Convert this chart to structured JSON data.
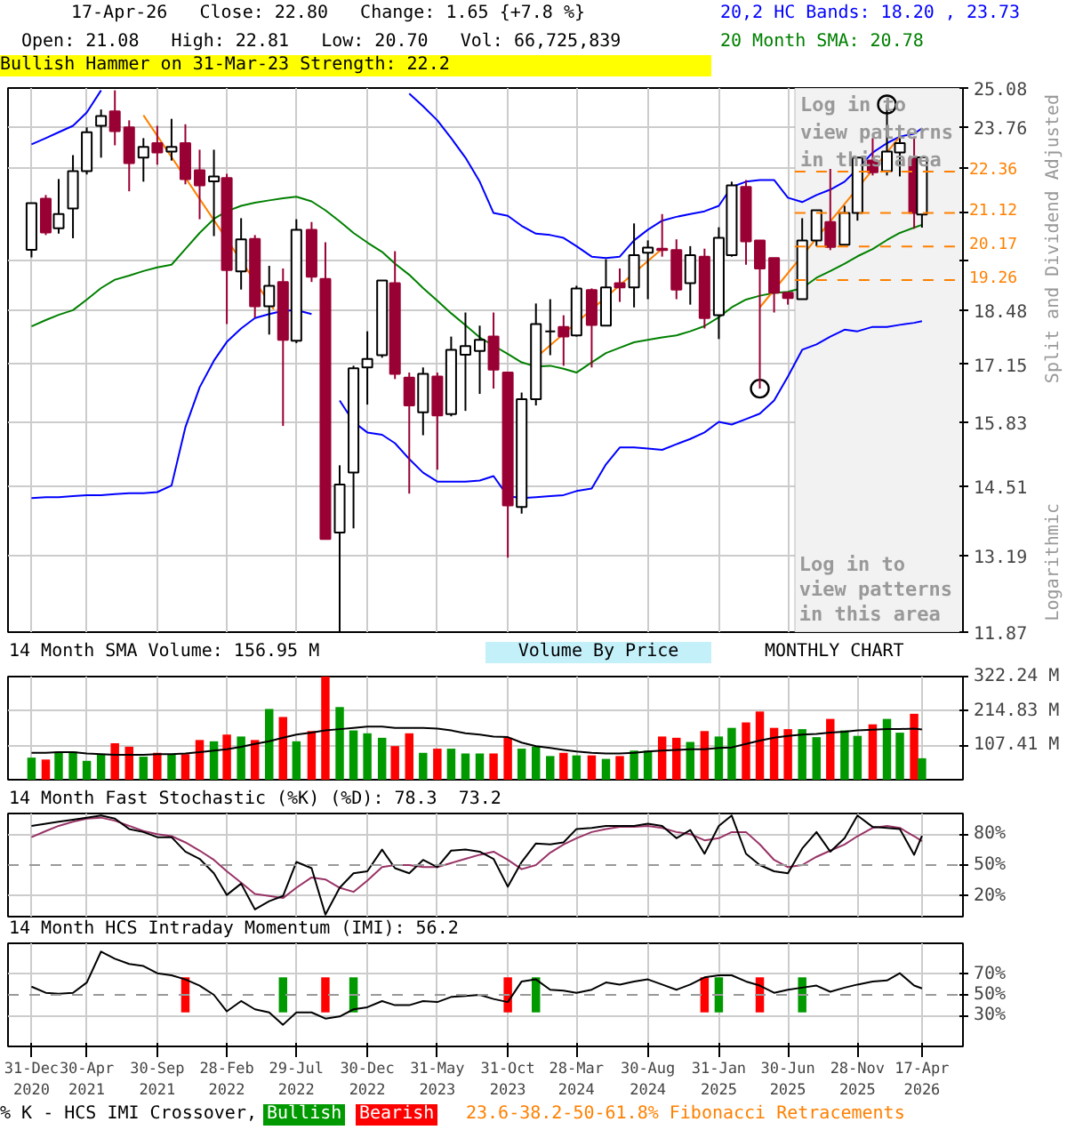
{
  "chart_data": [
    {
      "type": "candlestick",
      "title": "17-Apr-26   Close: 22.80   Change: 1.65 {+7.8 %}",
      "subtitle": "Open: 21.08   High: 22.81   Low: 20.70   Vol: 66,725,839",
      "ylabel": "Split and Dividend Adjusted",
      "x": [
        "2020-12-31",
        "2021-01-31",
        "2021-02-28",
        "2021-03-31",
        "2021-04-30",
        "2021-05-31",
        "2021-06-30",
        "2021-07-31",
        "2021-08-31",
        "2021-09-30",
        "2021-10-31",
        "2021-11-30",
        "2021-12-31",
        "2022-01-31",
        "2022-02-28",
        "2022-03-31",
        "2022-04-30",
        "2022-05-31",
        "2022-06-30",
        "2022-07-29",
        "2022-08-31",
        "2022-09-30",
        "2022-10-31",
        "2022-11-30",
        "2022-12-30",
        "2023-01-31",
        "2023-02-28",
        "2023-03-31",
        "2023-04-30",
        "2023-05-31",
        "2023-06-30",
        "2023-07-31",
        "2023-08-31",
        "2023-09-30",
        "2023-10-31",
        "2023-11-30",
        "2023-12-31",
        "2024-01-31",
        "2024-02-29",
        "2024-03-28",
        "2024-04-30",
        "2024-05-31",
        "2024-06-30",
        "2024-07-31",
        "2024-08-30",
        "2024-09-30",
        "2024-10-31",
        "2024-11-30",
        "2024-12-31",
        "2025-01-31",
        "2025-02-28",
        "2025-03-31",
        "2025-04-30",
        "2025-05-31",
        "2025-06-30",
        "2025-07-31",
        "2025-08-31",
        "2025-09-30",
        "2025-10-31",
        "2025-11-28",
        "2025-12-31",
        "2026-01-31",
        "2026-02-28",
        "2026-03-31",
        "2026-04-17"
      ],
      "ohlc": [
        [
          20.08,
          21.41,
          19.87,
          21.41
        ],
        [
          21.54,
          21.65,
          20.49,
          20.56
        ],
        [
          20.68,
          22.13,
          20.53,
          21.09
        ],
        [
          21.25,
          22.87,
          20.4,
          22.37
        ],
        [
          22.37,
          23.76,
          22.27,
          23.6
        ],
        [
          23.81,
          24.35,
          22.79,
          24.13
        ],
        [
          24.29,
          25.0,
          23.18,
          23.64
        ],
        [
          23.76,
          23.99,
          21.76,
          22.62
        ],
        [
          22.79,
          23.41,
          22.05,
          23.13
        ],
        [
          23.25,
          23.81,
          22.57,
          22.95
        ],
        [
          22.98,
          24.04,
          22.7,
          23.13
        ],
        [
          23.25,
          23.86,
          21.97,
          22.13
        ],
        [
          22.4,
          23.04,
          20.94,
          21.94
        ],
        [
          22.06,
          23.04,
          20.46,
          22.21
        ],
        [
          22.16,
          22.29,
          18.13,
          19.53
        ],
        [
          19.49,
          20.97,
          19.01,
          20.37
        ],
        [
          20.38,
          20.49,
          18.29,
          18.58
        ],
        [
          18.58,
          19.64,
          17.87,
          19.11
        ],
        [
          19.21,
          19.57,
          15.76,
          17.74
        ],
        [
          17.72,
          20.94,
          17.66,
          20.64
        ],
        [
          20.64,
          20.86,
          19.21,
          19.35
        ],
        [
          19.29,
          20.29,
          13.49,
          13.49
        ],
        [
          13.61,
          14.93,
          11.87,
          14.54
        ],
        [
          14.78,
          17.12,
          13.69,
          17.06
        ],
        [
          17.08,
          17.95,
          16.23,
          17.28
        ],
        [
          17.37,
          19.25,
          17.31,
          19.25
        ],
        [
          19.18,
          20.04,
          16.81,
          16.93
        ],
        [
          16.84,
          16.96,
          14.36,
          16.21
        ],
        [
          16.06,
          17.08,
          15.56,
          16.93
        ],
        [
          16.87,
          16.96,
          14.84,
          15.99
        ],
        [
          16.02,
          17.82,
          15.97,
          17.5
        ],
        [
          17.38,
          18.42,
          16.09,
          17.59
        ],
        [
          17.47,
          18.09,
          16.47,
          17.74
        ],
        [
          17.82,
          18.42,
          16.59,
          17.03
        ],
        [
          16.96,
          16.96,
          13.15,
          14.13
        ],
        [
          14.1,
          16.5,
          13.97,
          16.35
        ],
        [
          16.35,
          18.65,
          16.21,
          18.13
        ],
        [
          17.95,
          18.76,
          17.37,
          17.95
        ],
        [
          18.06,
          18.35,
          17.12,
          17.82
        ],
        [
          17.85,
          19.11,
          17.82,
          19.04
        ],
        [
          19.0,
          19.04,
          17.08,
          18.11
        ],
        [
          18.09,
          19.82,
          18.09,
          19.07
        ],
        [
          19.18,
          19.57,
          18.69,
          19.07
        ],
        [
          19.07,
          20.82,
          18.55,
          19.93
        ],
        [
          20.0,
          20.34,
          18.76,
          20.14
        ],
        [
          20.11,
          21.09,
          19.89,
          20.07
        ],
        [
          20.07,
          20.37,
          18.76,
          19.01
        ],
        [
          19.18,
          20.18,
          18.62,
          19.93
        ],
        [
          19.89,
          20.11,
          18.02,
          18.28
        ],
        [
          18.35,
          20.71,
          17.76,
          20.41
        ],
        [
          19.93,
          22.05,
          19.89,
          21.94
        ],
        [
          21.89,
          22.1,
          19.67,
          20.31
        ],
        [
          20.34,
          20.34,
          16.59,
          19.57
        ],
        [
          19.85,
          19.85,
          18.42,
          18.93
        ],
        [
          18.93,
          18.93,
          18.62,
          18.79
        ],
        [
          18.76,
          20.97,
          18.76,
          20.34
        ],
        [
          20.34,
          21.2,
          20.18,
          21.2
        ],
        [
          20.86,
          22.44,
          20.07,
          20.16
        ],
        [
          20.22,
          21.33,
          20.22,
          21.12
        ],
        [
          21.12,
          22.79,
          20.9,
          22.79
        ],
        [
          22.7,
          23.41,
          22.24,
          22.34
        ],
        [
          22.37,
          24.52,
          22.24,
          22.98
        ],
        [
          22.95,
          23.46,
          22.21,
          23.25
        ],
        [
          22.79,
          23.46,
          20.67,
          21.12
        ],
        [
          21.08,
          22.81,
          20.7,
          22.8
        ]
      ],
      "colors": [
        "#ffffff",
        "#990033",
        "#ffffff",
        "#ffffff",
        "#ffffff",
        "#ffffff",
        "#990033",
        "#990033",
        "#ffffff",
        "#990033",
        "#ffffff",
        "#990033",
        "#990033",
        "#ffffff",
        "#990033",
        "#ffffff",
        "#990033",
        "#ffffff",
        "#990033",
        "#ffffff",
        "#990033",
        "#990033",
        "#ffffff",
        "#ffffff",
        "#ffffff",
        "#ffffff",
        "#990033",
        "#990033",
        "#ffffff",
        "#990033",
        "#ffffff",
        "#ffffff",
        "#ffffff",
        "#990033",
        "#990033",
        "#ffffff",
        "#ffffff",
        "#000000",
        "#990033",
        "#ffffff",
        "#990033",
        "#ffffff",
        "#990033",
        "#ffffff",
        "#ffffff",
        "#990033",
        "#990033",
        "#ffffff",
        "#990033",
        "#ffffff",
        "#ffffff",
        "#990033",
        "#990033",
        "#990033",
        "#990033",
        "#ffffff",
        "#ffffff",
        "#990033",
        "#ffffff",
        "#ffffff",
        "#990033",
        "#ffffff",
        "#ffffff",
        "#990033",
        "#ffffff"
      ],
      "series": [
        {
          "type": "line",
          "name": "20,2 HC Bands: 18.20 , 23.73",
          "color": "#0000ff",
          "values": [
            23.21,
            23.41,
            23.6,
            23.81,
            24.25,
            25.0,
            null,
            null,
            null,
            null,
            null,
            null,
            null,
            null,
            null,
            null,
            null,
            null,
            null,
            null,
            null,
            null,
            null,
            null,
            null,
            null,
            null,
            24.89,
            24.46,
            23.99,
            23.41,
            22.79,
            22.05,
            21.12,
            21.04,
            20.75,
            20.53,
            20.49,
            20.41,
            20.18,
            19.89,
            19.85,
            19.89,
            20.34,
            20.64,
            20.9,
            21.01,
            21.09,
            21.17,
            21.33,
            21.89,
            22.05,
            22.1,
            22.1,
            21.57,
            21.44,
            21.65,
            21.81,
            22.05,
            22.44,
            22.95,
            23.25,
            23.46,
            23.55,
            23.73
          ]
        },
        {
          "type": "line",
          "color": "#0000ff",
          "values": [
            14.27,
            14.29,
            14.29,
            14.31,
            14.33,
            14.33,
            14.35,
            14.37,
            14.37,
            14.39,
            14.52,
            15.73,
            16.62,
            17.24,
            17.69,
            18.02,
            18.28,
            18.38,
            18.46,
            18.48,
            18.38,
            null,
            16.32,
            15.85,
            15.62,
            15.57,
            15.39,
            15.06,
            14.78,
            14.6,
            14.6,
            14.6,
            14.62,
            14.71,
            14.31,
            14.27,
            14.29,
            14.31,
            14.33,
            14.41,
            14.46,
            14.95,
            15.3,
            15.3,
            15.28,
            15.25,
            15.37,
            15.48,
            15.62,
            15.85,
            15.79,
            15.91,
            16.03,
            16.32,
            16.87,
            17.5,
            17.63,
            17.82,
            17.99,
            17.95,
            18.06,
            18.06,
            18.11,
            18.16,
            18.2
          ]
        },
        {
          "type": "line",
          "name": "20 Month SMA: 20.78",
          "color": "#008000",
          "values": [
            18.07,
            18.23,
            18.36,
            18.48,
            18.75,
            19.05,
            19.27,
            19.38,
            19.5,
            19.6,
            19.67,
            20.1,
            20.55,
            20.95,
            21.17,
            21.33,
            21.42,
            21.49,
            21.55,
            21.6,
            21.46,
            21.2,
            20.88,
            20.55,
            20.28,
            20.02,
            19.7,
            19.4,
            19.05,
            18.72,
            18.4,
            18.1,
            17.8,
            17.6,
            17.4,
            17.2,
            17.1,
            17.12,
            17.05,
            16.96,
            17.2,
            17.42,
            17.55,
            17.68,
            17.74,
            17.8,
            17.85,
            17.95,
            18.08,
            18.3,
            18.55,
            18.75,
            18.85,
            18.92,
            18.95,
            19.05,
            19.32,
            19.5,
            19.7,
            19.9,
            20.1,
            20.35,
            20.55,
            20.7,
            20.78
          ]
        },
        {
          "type": "line",
          "color": "#ff8000",
          "x": [
            "2021-08-31",
            "2022-06-10"
          ],
          "values": [
            24.16,
            18.5
          ]
        },
        {
          "type": "line",
          "color": "#ff8000",
          "x": [
            "2023-12-31",
            "2024-09-30"
          ],
          "values": [
            17.31,
            20.11
          ]
        },
        {
          "type": "line",
          "color": "#ff8000",
          "x": [
            "2025-04-30",
            "2026-02-28"
          ],
          "values": [
            18.55,
            23.46
          ]
        },
        {
          "type": "scatter",
          "color": "#000000",
          "marker": "circle",
          "x": [
            "2025-04-30",
            "2026-01-31"
          ],
          "values": [
            16.59,
            24.52
          ]
        }
      ],
      "xlim": [
        "2020-11-10",
        "2026-07-15"
      ],
      "xticks": [
        {
          "value": "2020-12-31",
          "label": null
        },
        {
          "value": "2021-04-30",
          "label": null
        },
        {
          "value": "2021-09-30",
          "label": null
        },
        {
          "value": "2022-02-28",
          "label": null
        },
        {
          "value": "2022-07-29",
          "label": null
        },
        {
          "value": "2022-12-30",
          "label": null
        },
        {
          "value": "2023-05-31",
          "label": null
        },
        {
          "value": "2023-10-31",
          "label": null
        },
        {
          "value": "2024-03-28",
          "label": null
        },
        {
          "value": "2024-08-30",
          "label": null
        },
        {
          "value": "2025-01-31",
          "label": null
        },
        {
          "value": "2025-06-30",
          "label": null
        },
        {
          "value": "2025-11-28",
          "label": null
        },
        {
          "value": "2026-04-17",
          "label": null
        }
      ],
      "ylim": [
        11.87,
        25.08
      ],
      "log": true,
      "yticks": [
        25.08,
        23.76,
        {
          "value": 22.44,
          "label": null
        },
        {
          "value": 21.12,
          "label": null
        },
        {
          "value": 19.8,
          "label": null
        },
        18.48,
        17.15,
        15.83,
        14.51,
        13.19,
        11.87
      ],
      "ref_lines": [
        {
          "axis": "y",
          "value": 22.36,
          "label": "22.36",
          "color": "#ff8000",
          "line_style": "dashed"
        },
        {
          "axis": "y",
          "value": 21.12,
          "label": "21.12",
          "color": "#ff8000",
          "line_style": "dashed"
        },
        {
          "axis": "y",
          "value": 20.17,
          "label": "20.17",
          "color": "#ff8000",
          "line_style": "dashed"
        },
        {
          "axis": "y",
          "value": 19.26,
          "label": "19.26",
          "color": "#ff8000",
          "line_style": "dashed"
        }
      ],
      "bands": [
        {
          "axis": "x",
          "from": "2025-07-15",
          "to": "2026-07-15",
          "color": "#f2f2f2",
          "label": "Log in to view patterns in this area"
        }
      ],
      "annotations": [
        "Bullish Hammer on 31-Mar-23 Strength: 22.2",
        "Log in to view patterns in this area",
        "Logarithmic",
        "Volume By Price",
        "23.6-38.2-50-61.8% Fibonacci Retracements"
      ],
      "grid": true,
      "legend": "top right",
      "tick_labels": "y"
    },
    {
      "type": "bar",
      "title": "14 Month SMA Volume: 156.95 M",
      "x": [
        "2020-12-31",
        "2021-01-31",
        "2021-02-28",
        "2021-03-31",
        "2021-04-30",
        "2021-05-31",
        "2021-06-30",
        "2021-07-31",
        "2021-08-31",
        "2021-09-30",
        "2021-10-31",
        "2021-11-30",
        "2021-12-31",
        "2022-01-31",
        "2022-02-28",
        "2022-03-31",
        "2022-04-30",
        "2022-05-31",
        "2022-06-30",
        "2022-07-29",
        "2022-08-31",
        "2022-09-30",
        "2022-10-31",
        "2022-11-30",
        "2022-12-30",
        "2023-01-31",
        "2023-02-28",
        "2023-03-31",
        "2023-04-30",
        "2023-05-31",
        "2023-06-30",
        "2023-07-31",
        "2023-08-31",
        "2023-09-30",
        "2023-10-31",
        "2023-11-30",
        "2023-12-31",
        "2024-01-31",
        "2024-02-29",
        "2024-03-28",
        "2024-04-30",
        "2024-05-31",
        "2024-06-30",
        "2024-07-31",
        "2024-08-30",
        "2024-09-30",
        "2024-10-31",
        "2024-11-30",
        "2024-12-31",
        "2025-01-31",
        "2025-02-28",
        "2025-03-31",
        "2025-04-30",
        "2025-05-31",
        "2025-06-30",
        "2025-07-31",
        "2025-08-31",
        "2025-09-30",
        "2025-10-31",
        "2025-11-28",
        "2025-12-31",
        "2026-01-31",
        "2026-02-28",
        "2026-03-31",
        "2026-04-17"
      ],
      "values": [
        69,
        63,
        88,
        88,
        59,
        78,
        114,
        103,
        72,
        84,
        80,
        80,
        124,
        120,
        141,
        135,
        124,
        221,
        196,
        120,
        152,
        322,
        227,
        154,
        145,
        131,
        105,
        145,
        84,
        97,
        97,
        82,
        82,
        82,
        131,
        97,
        103,
        74,
        84,
        76,
        76,
        65,
        74,
        91,
        91,
        135,
        131,
        118,
        152,
        135,
        162,
        179,
        213,
        162,
        158,
        158,
        133,
        190,
        154,
        137,
        173,
        190,
        147,
        206,
        67
      ],
      "colors": [
        "#009900",
        "#ff0000",
        "#009900",
        "#009900",
        "#009900",
        "#009900",
        "#ff0000",
        "#ff0000",
        "#009900",
        "#ff0000",
        "#009900",
        "#ff0000",
        "#ff0000",
        "#009900",
        "#ff0000",
        "#009900",
        "#ff0000",
        "#009900",
        "#ff0000",
        "#009900",
        "#ff0000",
        "#ff0000",
        "#009900",
        "#009900",
        "#009900",
        "#009900",
        "#ff0000",
        "#ff0000",
        "#009900",
        "#ff0000",
        "#009900",
        "#009900",
        "#009900",
        "#ff0000",
        "#ff0000",
        "#009900",
        "#009900",
        "#009900",
        "#ff0000",
        "#009900",
        "#ff0000",
        "#009900",
        "#ff0000",
        "#009900",
        "#009900",
        "#ff0000",
        "#ff0000",
        "#009900",
        "#ff0000",
        "#009900",
        "#009900",
        "#ff0000",
        "#ff0000",
        "#ff0000",
        "#ff0000",
        "#009900",
        "#009900",
        "#ff0000",
        "#009900",
        "#009900",
        "#ff0000",
        "#009900",
        "#009900",
        "#ff0000",
        "#009900"
      ],
      "series": [
        {
          "type": "line",
          "color": "#000000",
          "values": [
            84,
            84,
            86,
            86,
            82,
            80,
            78,
            78,
            78,
            80,
            80,
            82,
            86,
            91,
            95,
            103,
            112,
            120,
            131,
            141,
            147,
            154,
            158,
            162,
            166,
            166,
            162,
            162,
            162,
            160,
            154,
            145,
            141,
            135,
            133,
            116,
            105,
            99,
            93,
            88,
            84,
            82,
            82,
            84,
            88,
            91,
            93,
            95,
            95,
            99,
            101,
            112,
            122,
            131,
            137,
            141,
            143,
            147,
            150,
            154,
            156,
            158,
            158,
            160,
            157
          ]
        }
      ],
      "xlim": [
        "2020-11-10",
        "2026-07-15"
      ],
      "xticks": [
        {
          "value": "2020-12-31",
          "label": null
        },
        {
          "value": "2021-04-30",
          "label": null
        },
        {
          "value": "2021-09-30",
          "label": null
        },
        {
          "value": "2022-02-28",
          "label": null
        },
        {
          "value": "2022-07-29",
          "label": null
        },
        {
          "value": "2022-12-30",
          "label": null
        },
        {
          "value": "2023-05-31",
          "label": null
        },
        {
          "value": "2023-10-31",
          "label": null
        },
        {
          "value": "2024-03-28",
          "label": null
        },
        {
          "value": "2024-08-30",
          "label": null
        },
        {
          "value": "2025-01-31",
          "label": null
        },
        {
          "value": "2025-06-30",
          "label": null
        },
        {
          "value": "2025-11-28",
          "label": null
        },
        {
          "value": "2026-04-17",
          "label": null
        }
      ],
      "ylim": [
        0,
        322.24
      ],
      "yticks": [
        {
          "value": 107.41,
          "label": "107.41 M"
        },
        {
          "value": 214.83,
          "label": "214.83 M"
        },
        {
          "value": 322.24,
          "label": "322.24 M"
        }
      ],
      "annotations": [
        "MONTHLY CHART"
      ],
      "grid": true,
      "tick_labels": "y"
    },
    {
      "type": "line",
      "title": "14 Month Fast Stochastic (%K) (%D): 78.3  73.2",
      "x": [
        "2020-12-31",
        "2021-01-31",
        "2021-02-28",
        "2021-03-31",
        "2021-04-30",
        "2021-05-31",
        "2021-06-30",
        "2021-07-31",
        "2021-08-31",
        "2021-09-30",
        "2021-10-31",
        "2021-11-30",
        "2021-12-31",
        "2022-01-31",
        "2022-02-28",
        "2022-03-31",
        "2022-04-30",
        "2022-05-31",
        "2022-06-30",
        "2022-07-29",
        "2022-08-31",
        "2022-09-30",
        "2022-10-31",
        "2022-11-30",
        "2022-12-30",
        "2023-01-31",
        "2023-02-28",
        "2023-03-31",
        "2023-04-30",
        "2023-05-31",
        "2023-06-30",
        "2023-07-31",
        "2023-08-31",
        "2023-09-30",
        "2023-10-31",
        "2023-11-30",
        "2023-12-31",
        "2024-01-31",
        "2024-02-29",
        "2024-03-28",
        "2024-04-30",
        "2024-05-31",
        "2024-06-30",
        "2024-07-31",
        "2024-08-30",
        "2024-09-30",
        "2024-10-31",
        "2024-11-30",
        "2024-12-31",
        "2025-01-31",
        "2025-02-28",
        "2025-03-31",
        "2025-04-30",
        "2025-05-31",
        "2025-06-30",
        "2025-07-31",
        "2025-08-31",
        "2025-09-30",
        "2025-10-31",
        "2025-11-28",
        "2025-12-31",
        "2026-01-31",
        "2026-02-28",
        "2026-03-31",
        "2026-04-17"
      ],
      "series": [
        {
          "color": "#993366",
          "values": [
            77,
            83,
            88,
            92,
            95,
            96,
            93,
            88,
            83,
            80,
            78,
            72,
            64,
            55,
            44,
            33,
            22,
            20,
            18,
            28,
            38,
            36,
            28,
            24,
            35,
            48,
            50,
            50,
            48,
            48,
            52,
            56,
            60,
            63,
            55,
            46,
            50,
            62,
            70,
            76,
            82,
            85,
            87,
            87,
            88,
            86,
            82,
            80,
            74,
            76,
            82,
            82,
            70,
            55,
            48,
            50,
            58,
            64,
            70,
            78,
            86,
            88,
            86,
            78,
            73.2
          ]
        },
        {
          "color": "#000000",
          "values": [
            88,
            90,
            92,
            94,
            96,
            98,
            95,
            85,
            82,
            77,
            77,
            63,
            56,
            42,
            21,
            32,
            7,
            15,
            20,
            53,
            47,
            2,
            28,
            42,
            44,
            65,
            47,
            42,
            55,
            48,
            64,
            65,
            63,
            56,
            29,
            53,
            71,
            70,
            72,
            85,
            86,
            88,
            88,
            88,
            90,
            88,
            76,
            84,
            61,
            88,
            98,
            61,
            50,
            44,
            42,
            66,
            82,
            63,
            76,
            98,
            87,
            86,
            85,
            60,
            78.3
          ]
        }
      ],
      "xlim": [
        "2020-11-10",
        "2026-07-15"
      ],
      "xticks": [
        {
          "value": "2020-12-31",
          "label": null
        },
        {
          "value": "2021-04-30",
          "label": null
        },
        {
          "value": "2021-09-30",
          "label": null
        },
        {
          "value": "2022-02-28",
          "label": null
        },
        {
          "value": "2022-07-29",
          "label": null
        },
        {
          "value": "2022-12-30",
          "label": null
        },
        {
          "value": "2023-05-31",
          "label": null
        },
        {
          "value": "2023-10-31",
          "label": null
        },
        {
          "value": "2024-03-28",
          "label": null
        },
        {
          "value": "2024-08-30",
          "label": null
        },
        {
          "value": "2025-01-31",
          "label": null
        },
        {
          "value": "2025-06-30",
          "label": null
        },
        {
          "value": "2025-11-28",
          "label": null
        },
        {
          "value": "2026-04-17",
          "label": null
        }
      ],
      "ylim": [
        0,
        100
      ],
      "yticks": [
        {
          "value": 80,
          "label": "80%"
        },
        {
          "value": 50,
          "label": "50%"
        },
        {
          "value": 20,
          "label": "20%"
        }
      ],
      "ref_lines": [
        {
          "axis": "y",
          "value": 50,
          "color": "#999999",
          "line_style": "dashed"
        }
      ],
      "grid": true,
      "tick_labels": "y"
    },
    {
      "type": "line",
      "title": "14 Month HCS Intraday Momentum (IMI): 56.2",
      "legend_title": "% K - HCS IMI Crossover,",
      "x": [
        "2020-12-31",
        "2021-01-31",
        "2021-02-28",
        "2021-03-31",
        "2021-04-30",
        "2021-05-31",
        "2021-06-30",
        "2021-07-31",
        "2021-08-31",
        "2021-09-30",
        "2021-10-31",
        "2021-11-30",
        "2021-12-31",
        "2022-01-31",
        "2022-02-28",
        "2022-03-31",
        "2022-04-30",
        "2022-05-31",
        "2022-06-30",
        "2022-07-29",
        "2022-08-31",
        "2022-09-30",
        "2022-10-31",
        "2022-11-30",
        "2022-12-30",
        "2023-01-31",
        "2023-02-28",
        "2023-03-31",
        "2023-04-30",
        "2023-05-31",
        "2023-06-30",
        "2023-07-31",
        "2023-08-31",
        "2023-09-30",
        "2023-10-31",
        "2023-11-30",
        "2023-12-31",
        "2024-01-31",
        "2024-02-29",
        "2024-03-28",
        "2024-04-30",
        "2024-05-31",
        "2024-06-30",
        "2024-07-31",
        "2024-08-30",
        "2024-09-30",
        "2024-10-31",
        "2024-11-30",
        "2024-12-31",
        "2025-01-31",
        "2025-02-28",
        "2025-03-31",
        "2025-04-30",
        "2025-05-31",
        "2025-06-30",
        "2025-07-31",
        "2025-08-31",
        "2025-09-30",
        "2025-10-31",
        "2025-11-28",
        "2025-12-31",
        "2026-01-31",
        "2026-02-28",
        "2026-03-31",
        "2026-04-17"
      ],
      "series": [
        {
          "type": "bar",
          "name": "Bullish",
          "color": "#009900",
          "x": [
            "2022-06-30",
            "2022-11-30",
            "2023-12-31",
            "2025-01-31",
            "2025-07-31"
          ],
          "base": [
            33,
            33,
            33,
            33,
            33
          ],
          "values": [
            34,
            34,
            34,
            34,
            34
          ]
        },
        {
          "type": "bar",
          "name": "Bearish",
          "color": "#ff0000",
          "x": [
            "2021-11-30",
            "2022-09-30",
            "2023-10-31",
            "2024-12-31",
            "2025-04-30"
          ],
          "base": [
            33,
            33,
            33,
            33,
            33
          ],
          "values": [
            34,
            34,
            34,
            34,
            34
          ]
        },
        {
          "type": "line",
          "color": "#000000",
          "values": [
            58,
            52,
            51,
            52,
            62,
            92,
            85,
            80,
            78,
            71,
            69,
            65,
            59,
            50,
            34,
            44,
            36,
            33,
            21,
            33,
            33,
            27,
            29,
            36,
            38,
            44,
            40,
            40,
            44,
            43,
            48,
            49,
            50,
            46,
            43,
            63,
            65,
            55,
            54,
            52,
            55,
            62,
            60,
            63,
            65,
            60,
            55,
            60,
            67,
            69,
            69,
            63,
            59,
            52,
            55,
            57,
            59,
            53,
            57,
            60,
            63,
            64,
            71,
            59,
            56.2
          ]
        }
      ],
      "xlim": [
        "2020-11-10",
        "2026-07-15"
      ],
      "xticks": [
        {
          "value": "2020-12-31",
          "label": "31-Dec 2020"
        },
        {
          "value": "2021-04-30",
          "label": "30-Apr 2021"
        },
        {
          "value": "2021-09-30",
          "label": "30-Sep 2021"
        },
        {
          "value": "2022-02-28",
          "label": "28-Feb 2022"
        },
        {
          "value": "2022-07-29",
          "label": "29-Jul 2022"
        },
        {
          "value": "2022-12-30",
          "label": "30-Dec 2022"
        },
        {
          "value": "2023-05-31",
          "label": "31-May 2023"
        },
        {
          "value": "2023-10-31",
          "label": "31-Oct 2023"
        },
        {
          "value": "2024-03-28",
          "label": "28-Mar 2024"
        },
        {
          "value": "2024-08-30",
          "label": "30-Aug 2024"
        },
        {
          "value": "2025-01-31",
          "label": "31-Jan 2025"
        },
        {
          "value": "2025-06-30",
          "label": "30-Jun 2025"
        },
        {
          "value": "2025-11-28",
          "label": "28-Nov 2025"
        },
        {
          "value": "2026-04-17",
          "label": "17-Apr 2026"
        }
      ],
      "ylim": [
        0,
        100
      ],
      "yticks": [
        {
          "value": 70,
          "label": "70%"
        },
        {
          "value": 50,
          "label": "50%"
        },
        {
          "value": 30,
          "label": "30%"
        }
      ],
      "ref_lines": [
        {
          "axis": "y",
          "value": 50,
          "color": "#999999",
          "line_style": "dashed"
        }
      ],
      "grid": true,
      "legend": "bottom"
    }
  ]
}
